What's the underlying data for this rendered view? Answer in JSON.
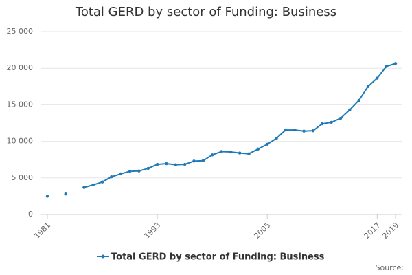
{
  "chart_data": {
    "type": "line",
    "title": "Total GERD by sector of Funding: Business",
    "x": [
      1981,
      1982,
      1983,
      1984,
      1985,
      1986,
      1987,
      1988,
      1989,
      1990,
      1991,
      1992,
      1993,
      1994,
      1995,
      1996,
      1997,
      1998,
      1999,
      2000,
      2001,
      2002,
      2003,
      2004,
      2005,
      2006,
      2007,
      2008,
      2009,
      2010,
      2011,
      2012,
      2013,
      2014,
      2015,
      2016,
      2017,
      2018,
      2019
    ],
    "series": [
      {
        "name": "Total GERD by sector of Funding: Business",
        "color": "#1f7ab7",
        "values": [
          2500,
          null,
          2800,
          null,
          3700,
          4050,
          4450,
          5150,
          5550,
          5900,
          5950,
          6300,
          6850,
          6950,
          6800,
          6850,
          7300,
          7350,
          8150,
          8600,
          8550,
          8400,
          8300,
          8950,
          9600,
          10400,
          11550,
          11550,
          11400,
          11450,
          12400,
          12600,
          13150,
          14300,
          15600,
          17500,
          18650,
          20250,
          20650
        ]
      }
    ],
    "xlim": [
      1981,
      2019
    ],
    "xticks": [
      1981,
      1993,
      2005,
      2017,
      2019
    ],
    "ylim": [
      0,
      25000
    ],
    "yticks": [
      0,
      {
        "value": 5000,
        "label": "5 000"
      },
      {
        "value": 10000,
        "label": "10 000"
      },
      {
        "value": 15000,
        "label": "15 000"
      },
      {
        "value": 20000,
        "label": "20 000"
      },
      {
        "value": 25000,
        "label": "25 000"
      }
    ],
    "grid": true,
    "legend": "bottom",
    "source": "Source:"
  }
}
